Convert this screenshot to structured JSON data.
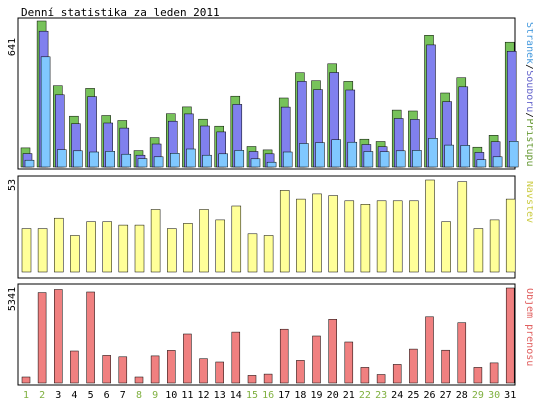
{
  "chart_data": {
    "type": "bar",
    "title": "Denní statistika za leden 2011",
    "categories": [
      "1",
      "2",
      "3",
      "4",
      "5",
      "6",
      "7",
      "8",
      "9",
      "10",
      "11",
      "12",
      "13",
      "14",
      "15",
      "16",
      "17",
      "18",
      "19",
      "20",
      "21",
      "22",
      "23",
      "24",
      "25",
      "26",
      "27",
      "28",
      "29",
      "30",
      "31"
    ],
    "weekend_days": [
      "1",
      "2",
      "8",
      "9",
      "15",
      "16",
      "22",
      "23",
      "29",
      "30"
    ],
    "colors": {
      "pristupu": "#77c25a",
      "souboru": "#8080ee",
      "stranek": "#80c8ff",
      "navstev": "#ffff99",
      "objem": "#f08080",
      "weekday_label": "#000000",
      "weekend_label": "#7fb03f"
    },
    "panels": [
      {
        "name": "top",
        "max_label": "641",
        "legend": [
          {
            "text": "Stránek",
            "color": "#4499dd"
          },
          {
            "text": "/",
            "color": "#000000"
          },
          {
            "text": "Souborů",
            "color": "#6666cc"
          },
          {
            "text": "/",
            "color": "#000000"
          },
          {
            "text": "Přístupů",
            "color": "#669933"
          }
        ],
        "series": [
          {
            "name": "Přístupů",
            "values": [
              84,
              641,
              357,
              223,
              345,
              226,
              204,
              72,
              129,
              234,
              264,
              210,
              179,
              311,
              90,
              75,
              303,
              414,
              379,
              453,
              376,
              122,
              112,
              250,
              246,
              578,
              325,
              392,
              87,
              139,
              548
            ]
          },
          {
            "name": "Souborů",
            "values": [
              59,
              596,
              317,
              190,
              309,
              193,
              171,
              52,
              101,
              201,
              233,
              180,
              154,
              275,
              68,
              58,
              263,
              376,
              340,
              415,
              338,
              99,
              89,
              213,
              209,
              536,
              287,
              352,
              64,
              111,
              508
            ]
          },
          {
            "name": "Stránek",
            "values": [
              30,
              484,
              76,
              71,
              66,
              69,
              56,
              37,
              45,
              60,
              79,
              52,
              58,
              73,
              36,
              21,
              66,
              103,
              107,
              120,
              109,
              68,
              67,
              71,
              73,
              126,
              96,
              95,
              32,
              45,
              113
            ]
          }
        ]
      },
      {
        "name": "middle",
        "max_label": "53",
        "legend": [
          {
            "text": "Návštěv",
            "color": "#cccc44"
          }
        ],
        "series": [
          {
            "name": "Návštěv",
            "values": [
              25,
              25,
              31,
              21,
              29,
              29,
              27,
              27,
              36,
              25,
              28,
              36,
              30,
              38,
              22,
              21,
              47,
              42,
              45,
              44,
              41,
              39,
              41,
              41,
              41,
              53,
              29,
              52,
              25,
              30,
              42
            ]
          }
        ]
      },
      {
        "name": "bottom",
        "max_label": "5341",
        "legend": [
          {
            "text": "Objem přenosu",
            "color": "#e06060"
          }
        ],
        "series": [
          {
            "name": "Objem přenosu",
            "values": [
              340,
              5080,
              5258,
              1800,
              5118,
              1552,
              1472,
              340,
              1523,
              1832,
              2756,
              1366,
              1178,
              2859,
              427,
              502,
              3023,
              1269,
              2643,
              3579,
              2307,
              877,
              479,
              1045,
              1908,
              3720,
              1844,
              3389,
              877,
              1129,
              5341
            ]
          }
        ]
      }
    ]
  }
}
